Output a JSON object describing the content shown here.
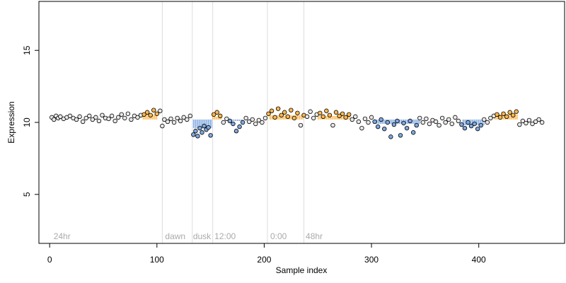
{
  "chart_data": {
    "type": "scatter",
    "title": "",
    "xlabel": "Sample index",
    "ylabel": "Expression",
    "xlim": [
      -10,
      480
    ],
    "ylim": [
      1.6,
      18.4
    ],
    "x_ticks": [
      0,
      100,
      200,
      300,
      400
    ],
    "y_ticks": [
      5,
      10,
      15
    ],
    "baseline": 10.2,
    "grid": false,
    "legend": "none",
    "colors": {
      "point_stroke": "#000000",
      "up_fill": "#FFB84D",
      "down_fill": "#7EA8E0",
      "neutral_fill": "#E8E8E8",
      "phase_line": "#DDDDDD",
      "phase_text": "#AAAAAA"
    },
    "phase_lines": [
      105,
      133,
      152,
      203,
      237
    ],
    "phase_labels": [
      {
        "x": 3,
        "text": "24hr"
      },
      {
        "x": 107,
        "text": "dawn"
      },
      {
        "x": 133,
        "text": "dusk"
      },
      {
        "x": 153,
        "text": "12:00"
      },
      {
        "x": 205,
        "text": "0:00"
      },
      {
        "x": 238,
        "text": "48hr"
      }
    ],
    "highlight_segments": [
      {
        "x0": 87,
        "x1": 100,
        "y": 10.55,
        "dir": "up"
      },
      {
        "x0": 134,
        "x1": 151,
        "y": 9.6,
        "dir": "down"
      },
      {
        "x0": 152,
        "x1": 160,
        "y": 10.4,
        "dir": "up"
      },
      {
        "x0": 165,
        "x1": 180,
        "y": 10.1,
        "dir": "down"
      },
      {
        "x0": 205,
        "x1": 236,
        "y": 10.5,
        "dir": "up"
      },
      {
        "x0": 250,
        "x1": 280,
        "y": 10.45,
        "dir": "up"
      },
      {
        "x0": 305,
        "x1": 345,
        "y": 9.9,
        "dir": "down"
      },
      {
        "x0": 385,
        "x1": 405,
        "y": 9.8,
        "dir": "down"
      },
      {
        "x0": 415,
        "x1": 436,
        "y": 10.55,
        "dir": "up"
      }
    ],
    "points": [
      [
        2,
        10.35
      ],
      [
        4,
        10.2
      ],
      [
        6,
        10.45
      ],
      [
        8,
        10.3
      ],
      [
        10,
        10.4
      ],
      [
        13,
        10.25
      ],
      [
        16,
        10.35
      ],
      [
        19,
        10.45
      ],
      [
        22,
        10.3
      ],
      [
        25,
        10.2
      ],
      [
        28,
        10.4
      ],
      [
        31,
        10.05
      ],
      [
        34,
        10.3
      ],
      [
        37,
        10.45
      ],
      [
        40,
        10.2
      ],
      [
        43,
        10.35
      ],
      [
        46,
        10.1
      ],
      [
        49,
        10.5
      ],
      [
        52,
        10.3
      ],
      [
        55,
        10.25
      ],
      [
        58,
        10.45
      ],
      [
        61,
        10.1
      ],
      [
        64,
        10.35
      ],
      [
        67,
        10.55
      ],
      [
        70,
        10.3
      ],
      [
        73,
        10.6
      ],
      [
        76,
        10.2
      ],
      [
        79,
        10.45
      ],
      [
        82,
        10.35
      ],
      [
        85,
        10.5
      ],
      [
        88,
        10.55,
        "u"
      ],
      [
        91,
        10.7,
        "u"
      ],
      [
        94,
        10.5,
        "u"
      ],
      [
        97,
        10.85,
        "u"
      ],
      [
        100,
        10.6,
        "u"
      ],
      [
        103,
        10.8
      ],
      [
        105,
        9.75
      ],
      [
        107,
        10.2
      ],
      [
        110,
        10.05
      ],
      [
        113,
        10.25
      ],
      [
        116,
        10.0
      ],
      [
        119,
        10.3
      ],
      [
        122,
        10.1
      ],
      [
        125,
        10.35
      ],
      [
        128,
        10.2
      ],
      [
        131,
        10.45
      ],
      [
        134,
        9.15,
        "d"
      ],
      [
        136,
        9.4,
        "d"
      ],
      [
        138,
        9.05,
        "d"
      ],
      [
        140,
        9.6,
        "d"
      ],
      [
        142,
        9.3,
        "d"
      ],
      [
        144,
        9.75,
        "d"
      ],
      [
        146,
        9.5,
        "d"
      ],
      [
        148,
        9.65,
        "d"
      ],
      [
        150,
        9.1,
        "d"
      ],
      [
        153,
        10.55,
        "u"
      ],
      [
        156,
        10.7,
        "u"
      ],
      [
        159,
        10.45,
        "u"
      ],
      [
        162,
        10.0
      ],
      [
        165,
        10.25
      ],
      [
        168,
        10.1,
        "d"
      ],
      [
        171,
        9.9,
        "d"
      ],
      [
        174,
        9.4,
        "d"
      ],
      [
        177,
        9.7,
        "d"
      ],
      [
        180,
        10.0,
        "d"
      ],
      [
        183,
        10.3
      ],
      [
        186,
        10.05
      ],
      [
        189,
        10.2
      ],
      [
        192,
        9.9
      ],
      [
        195,
        10.15
      ],
      [
        198,
        10.0
      ],
      [
        201,
        10.3
      ],
      [
        204,
        10.6,
        "u"
      ],
      [
        207,
        10.8,
        "u"
      ],
      [
        210,
        10.35,
        "u"
      ],
      [
        213,
        10.95,
        "u"
      ],
      [
        216,
        10.5,
        "u"
      ],
      [
        219,
        10.7,
        "u"
      ],
      [
        222,
        10.4,
        "u"
      ],
      [
        225,
        10.85,
        "u"
      ],
      [
        228,
        10.3,
        "u"
      ],
      [
        231,
        10.65,
        "u"
      ],
      [
        234,
        9.8
      ],
      [
        237,
        10.5,
        "u"
      ],
      [
        240,
        10.4
      ],
      [
        243,
        10.75
      ],
      [
        246,
        10.3
      ],
      [
        249,
        10.55
      ],
      [
        252,
        10.65,
        "u"
      ],
      [
        255,
        10.4,
        "u"
      ],
      [
        258,
        10.8,
        "u"
      ],
      [
        261,
        10.5,
        "u"
      ],
      [
        264,
        9.8
      ],
      [
        267,
        10.7,
        "u"
      ],
      [
        270,
        10.45,
        "u"
      ],
      [
        273,
        10.6,
        "u"
      ],
      [
        276,
        10.35,
        "u"
      ],
      [
        279,
        10.55,
        "u"
      ],
      [
        282,
        10.2
      ],
      [
        285,
        10.4
      ],
      [
        288,
        10.05
      ],
      [
        291,
        9.6
      ],
      [
        294,
        10.25
      ],
      [
        297,
        10.0
      ],
      [
        300,
        10.35
      ],
      [
        303,
        10.05,
        "d"
      ],
      [
        306,
        9.7,
        "d"
      ],
      [
        309,
        10.2,
        "d"
      ],
      [
        312,
        9.55,
        "d"
      ],
      [
        315,
        10.0,
        "d"
      ],
      [
        318,
        9.0,
        "d"
      ],
      [
        321,
        9.85,
        "d"
      ],
      [
        324,
        10.1,
        "d"
      ],
      [
        327,
        9.1,
        "d"
      ],
      [
        330,
        9.95,
        "d"
      ],
      [
        333,
        9.6,
        "d"
      ],
      [
        336,
        10.1,
        "d"
      ],
      [
        339,
        9.3,
        "d"
      ],
      [
        342,
        9.8,
        "d"
      ],
      [
        345,
        10.3
      ],
      [
        348,
        10.0
      ],
      [
        351,
        10.25
      ],
      [
        354,
        9.9
      ],
      [
        357,
        10.15
      ],
      [
        360,
        10.05
      ],
      [
        363,
        9.8
      ],
      [
        366,
        10.3
      ],
      [
        369,
        10.0
      ],
      [
        372,
        10.2
      ],
      [
        375,
        9.9
      ],
      [
        378,
        10.35
      ],
      [
        381,
        10.1
      ],
      [
        384,
        9.85,
        "d"
      ],
      [
        387,
        9.6,
        "d"
      ],
      [
        390,
        10.0,
        "d"
      ],
      [
        393,
        9.75,
        "d"
      ],
      [
        396,
        9.9,
        "d"
      ],
      [
        399,
        9.55,
        "d"
      ],
      [
        402,
        9.8,
        "d"
      ],
      [
        405,
        10.2
      ],
      [
        408,
        10.0
      ],
      [
        411,
        10.3
      ],
      [
        414,
        10.45
      ],
      [
        417,
        10.55,
        "u"
      ],
      [
        420,
        10.35,
        "u"
      ],
      [
        423,
        10.6,
        "u"
      ],
      [
        426,
        10.4,
        "u"
      ],
      [
        429,
        10.7,
        "u"
      ],
      [
        432,
        10.5,
        "u"
      ],
      [
        435,
        10.75,
        "u"
      ],
      [
        438,
        9.85
      ],
      [
        441,
        10.1
      ],
      [
        444,
        9.95
      ],
      [
        447,
        10.15
      ],
      [
        450,
        9.9
      ],
      [
        453,
        10.05
      ],
      [
        456,
        10.2
      ],
      [
        459,
        10.0
      ]
    ]
  }
}
